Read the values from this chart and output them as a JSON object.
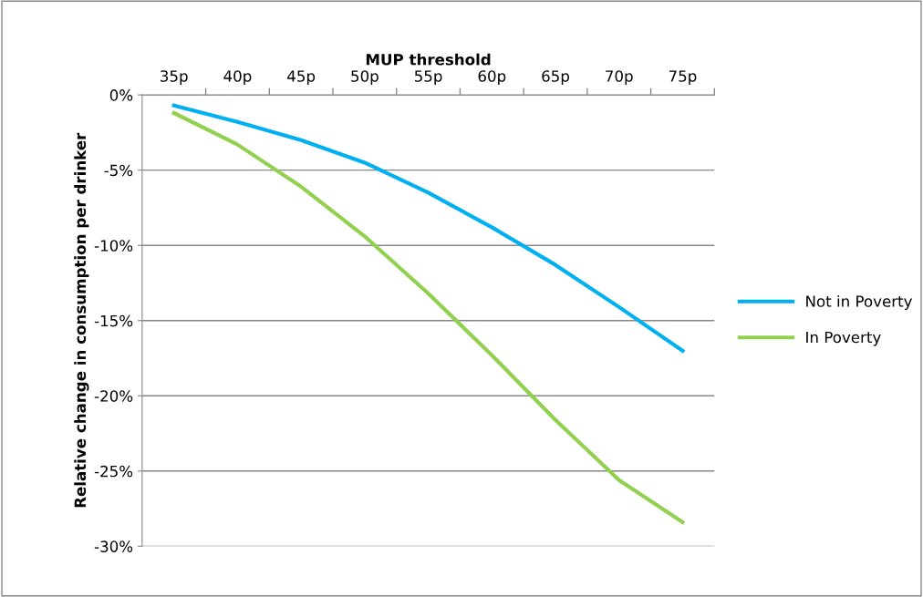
{
  "chart_data": {
    "type": "line",
    "xlabel": "MUP threshold",
    "ylabel": "Relative change in consumption per drinker",
    "categories": [
      "35p",
      "40p",
      "45p",
      "50p",
      "55p",
      "60p",
      "65p",
      "70p",
      "75p"
    ],
    "series": [
      {
        "name": "Not in Poverty",
        "color": "#00b0f0",
        "values": [
          -0.7,
          -1.8,
          -3.0,
          -4.5,
          -6.5,
          -8.8,
          -11.3,
          -14.1,
          -17.0
        ]
      },
      {
        "name": "In Poverty",
        "color": "#92d050",
        "values": [
          -1.2,
          -3.3,
          -6.1,
          -9.4,
          -13.2,
          -17.3,
          -21.6,
          -25.6,
          -28.4
        ]
      }
    ],
    "ylim": [
      -30,
      0
    ],
    "yticks": [
      {
        "value": 0,
        "label": "0%"
      },
      {
        "value": -5,
        "label": "-5%"
      },
      {
        "value": -10,
        "label": "-10%"
      },
      {
        "value": -15,
        "label": "-15%"
      },
      {
        "value": -20,
        "label": "-20%"
      },
      {
        "value": -25,
        "label": "-25%"
      },
      {
        "value": -30,
        "label": "-30%"
      }
    ],
    "grid": "y",
    "legend": "right",
    "marker": "none",
    "line_style": "solid"
  }
}
